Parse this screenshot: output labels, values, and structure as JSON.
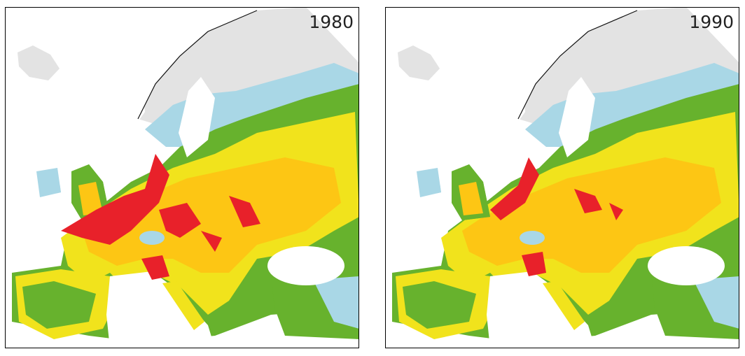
{
  "panels": [
    {
      "label": "1980"
    },
    {
      "label": "1990"
    }
  ]
}
